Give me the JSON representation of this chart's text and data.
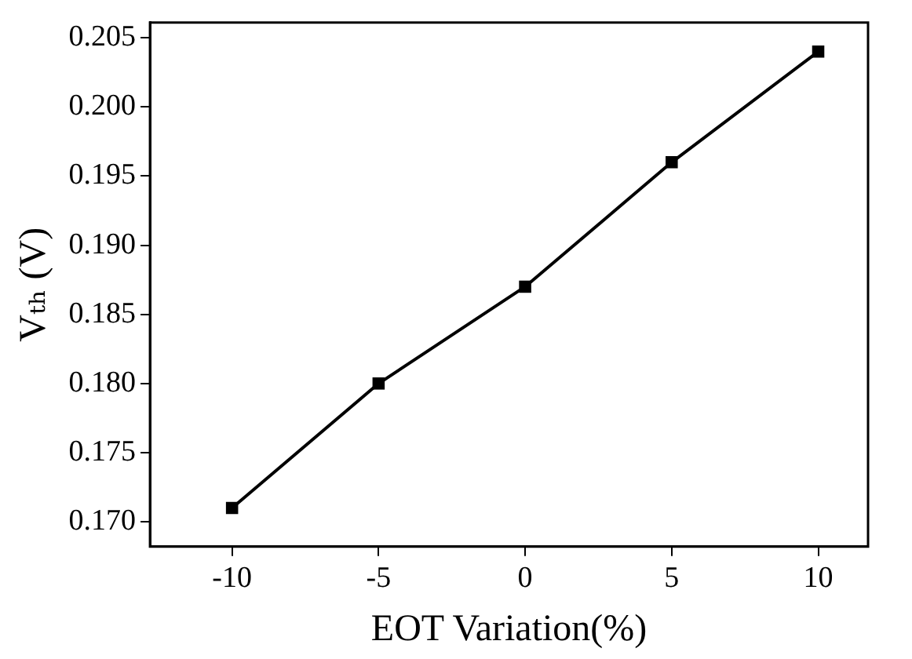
{
  "chart_data": {
    "type": "line",
    "xlabel": "EOT Variation(%)",
    "ylabel": "Vₜₕ (V)",
    "x": [
      -10,
      -5,
      0,
      5,
      10
    ],
    "series": [
      {
        "color": "#000000",
        "values": [
          0.171,
          0.18,
          0.187,
          0.196,
          0.204
        ]
      }
    ],
    "xlim": [
      -12.8,
      11.7
    ],
    "xticks": [
      -10,
      -5,
      0,
      5,
      10
    ],
    "ylim": [
      0.1682,
      0.2061
    ],
    "yticks": [
      {
        "value": 0.17,
        "label": "0.170"
      },
      {
        "value": 0.175,
        "label": "0.175"
      },
      {
        "value": 0.18,
        "label": "0.180"
      },
      {
        "value": 0.185,
        "label": "0.185"
      },
      {
        "value": 0.19,
        "label": "0.190"
      },
      {
        "value": 0.195,
        "label": "0.195"
      },
      {
        "value": 0.2,
        "label": "0.200"
      },
      {
        "value": 0.205,
        "label": "0.205"
      }
    ],
    "grid": false,
    "legend": false,
    "marker": "square",
    "line_style": "solid"
  }
}
